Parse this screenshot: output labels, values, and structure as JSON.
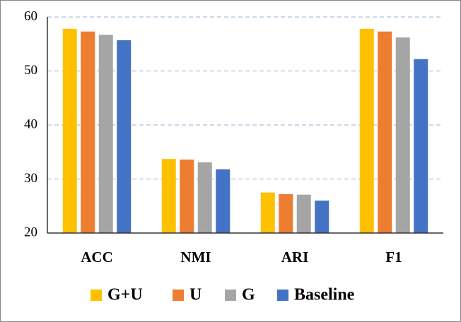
{
  "chart_data": {
    "type": "bar",
    "categories": [
      "ACC",
      "NMI",
      "ARI",
      "F1"
    ],
    "series": [
      {
        "name": "G+U",
        "color": "#FFC000",
        "values": [
          57.8,
          33.7,
          27.5,
          57.8
        ]
      },
      {
        "name": "U",
        "color": "#ED7D31",
        "values": [
          57.3,
          33.6,
          27.2,
          57.3
        ]
      },
      {
        "name": "G",
        "color": "#A5A5A5",
        "values": [
          56.7,
          33.1,
          27.1,
          56.2
        ]
      },
      {
        "name": "Baseline",
        "color": "#4472C4",
        "values": [
          55.7,
          31.8,
          26.0,
          52.2
        ]
      }
    ],
    "ylim": [
      20,
      60
    ],
    "yticks": [
      20,
      30,
      40,
      50,
      60
    ],
    "grid": true
  }
}
